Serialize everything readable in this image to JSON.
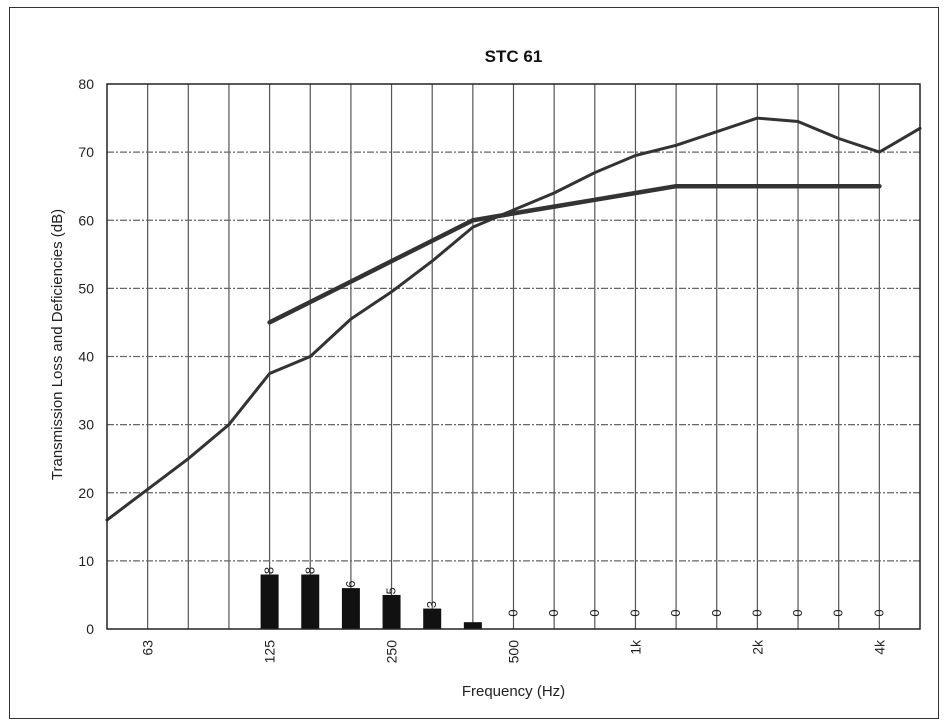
{
  "chart_data": {
    "type": "line",
    "title": "STC 61",
    "xlabel": "Frequency (Hz)",
    "ylabel": "Transmission Loss and Deficiencies (dB)",
    "ylim": [
      0,
      80
    ],
    "y_ticks": [
      "0",
      "10",
      "20",
      "30",
      "40",
      "50",
      "60",
      "70",
      "80"
    ],
    "grid": true,
    "legend": "none",
    "x_third_octave_hz": [
      50,
      63,
      80,
      100,
      125,
      160,
      200,
      250,
      315,
      400,
      500,
      630,
      800,
      1000,
      1250,
      1600,
      2000,
      2500,
      3150,
      4000,
      5000
    ],
    "x_tick_labels": [
      {
        "hz": 63,
        "label": "63"
      },
      {
        "hz": 125,
        "label": "125"
      },
      {
        "hz": 250,
        "label": "250"
      },
      {
        "hz": 500,
        "label": "500"
      },
      {
        "hz": 1000,
        "label": "1k"
      },
      {
        "hz": 2000,
        "label": "2k"
      },
      {
        "hz": 4000,
        "label": "4k"
      }
    ],
    "series": [
      {
        "type": "line",
        "color": "#333333",
        "x": [
          50,
          63,
          80,
          100,
          125,
          160,
          200,
          250,
          315,
          400,
          500,
          630,
          800,
          1000,
          1250,
          1600,
          2000,
          2500,
          3150,
          4000,
          5000
        ],
        "values": [
          16,
          20.5,
          25,
          30,
          37.5,
          40,
          45.5,
          49.5,
          54,
          59,
          61.5,
          64,
          67,
          69.5,
          71,
          73,
          75,
          74.5,
          72,
          70,
          73.5
        ]
      },
      {
        "type": "line",
        "color": "#333333",
        "x": [
          125,
          160,
          200,
          250,
          315,
          400,
          500,
          630,
          800,
          1000,
          1250,
          1600,
          2000,
          2500,
          3150,
          4000
        ],
        "values": [
          45,
          48,
          51,
          54,
          57,
          60,
          61,
          62,
          63,
          64,
          65,
          65,
          65,
          65,
          65,
          65
        ]
      },
      {
        "type": "bar",
        "color": "#111111",
        "x": [
          125,
          160,
          200,
          250,
          315,
          400,
          500,
          630,
          800,
          1000,
          1250,
          1600,
          2000,
          2500,
          3150,
          4000
        ],
        "values": [
          8,
          8,
          6,
          5,
          3,
          1,
          0,
          0,
          0,
          0,
          0,
          0,
          0,
          0,
          0,
          0
        ],
        "labels": [
          "8",
          "8",
          "6",
          "5",
          "3",
          "1",
          "0",
          "0",
          "0",
          "0",
          "0",
          "0",
          "0",
          "0",
          "0",
          "0"
        ]
      }
    ]
  }
}
